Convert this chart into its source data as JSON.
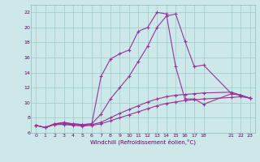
{
  "xlabel": "Windchill (Refroidissement éolien,°C)",
  "bg_color": "#cce8e8",
  "grid_color": "#99cccc",
  "line_color": "#993399",
  "xlim": [
    -0.5,
    23.5
  ],
  "ylim": [
    6,
    23
  ],
  "xtick_vals": [
    0,
    1,
    2,
    3,
    4,
    5,
    6,
    7,
    8,
    9,
    10,
    11,
    12,
    13,
    14,
    15,
    16,
    17,
    18,
    21,
    22,
    23
  ],
  "xtick_labels": [
    "0",
    "1",
    "2",
    "3",
    "4",
    "5",
    "6",
    "7",
    "8",
    "9",
    "10",
    "11",
    "12",
    "13",
    "14",
    "15",
    "16",
    "17",
    "18",
    "21",
    "22",
    "23"
  ],
  "ytick_vals": [
    6,
    8,
    10,
    12,
    14,
    16,
    18,
    20,
    22
  ],
  "ytick_labels": [
    "6",
    "8",
    "10",
    "12",
    "14",
    "16",
    "18",
    "20",
    "22"
  ],
  "curves": [
    {
      "x": [
        0,
        1,
        2,
        3,
        4,
        5,
        6,
        7,
        8,
        9,
        10,
        11,
        12,
        13,
        14,
        15,
        16,
        17,
        18,
        21,
        22,
        23
      ],
      "y": [
        7.0,
        6.7,
        7.1,
        7.1,
        7.0,
        6.9,
        7.0,
        7.2,
        7.6,
        8.0,
        8.4,
        8.8,
        9.2,
        9.6,
        9.9,
        10.1,
        10.3,
        10.4,
        10.5,
        10.7,
        10.8,
        10.6
      ]
    },
    {
      "x": [
        0,
        1,
        2,
        3,
        4,
        5,
        6,
        7,
        8,
        9,
        10,
        11,
        12,
        13,
        14,
        15,
        16,
        17,
        18,
        21,
        22,
        23
      ],
      "y": [
        7.0,
        6.7,
        7.1,
        7.2,
        7.1,
        7.0,
        7.1,
        7.4,
        8.0,
        8.6,
        9.1,
        9.6,
        10.1,
        10.5,
        10.8,
        11.0,
        11.1,
        11.2,
        11.3,
        11.4,
        11.0,
        10.6
      ]
    },
    {
      "x": [
        0,
        1,
        2,
        3,
        4,
        5,
        6,
        7,
        8,
        9,
        10,
        11,
        12,
        13,
        14,
        15,
        16,
        17,
        18,
        21,
        22,
        23
      ],
      "y": [
        7.0,
        6.7,
        7.2,
        7.3,
        7.2,
        7.1,
        7.2,
        8.5,
        10.5,
        12.0,
        13.5,
        15.5,
        17.5,
        20.0,
        21.5,
        21.8,
        18.2,
        14.8,
        15.0,
        11.2,
        11.0,
        10.6
      ]
    },
    {
      "x": [
        0,
        1,
        2,
        3,
        4,
        5,
        6,
        7,
        8,
        9,
        10,
        11,
        12,
        13,
        14,
        15,
        16,
        17,
        18,
        21,
        22,
        23
      ],
      "y": [
        7.0,
        6.7,
        7.2,
        7.4,
        7.2,
        7.1,
        7.2,
        13.5,
        15.8,
        16.5,
        17.0,
        19.5,
        20.0,
        22.0,
        21.8,
        14.8,
        10.5,
        10.5,
        9.8,
        11.2,
        11.0,
        10.6
      ]
    }
  ]
}
